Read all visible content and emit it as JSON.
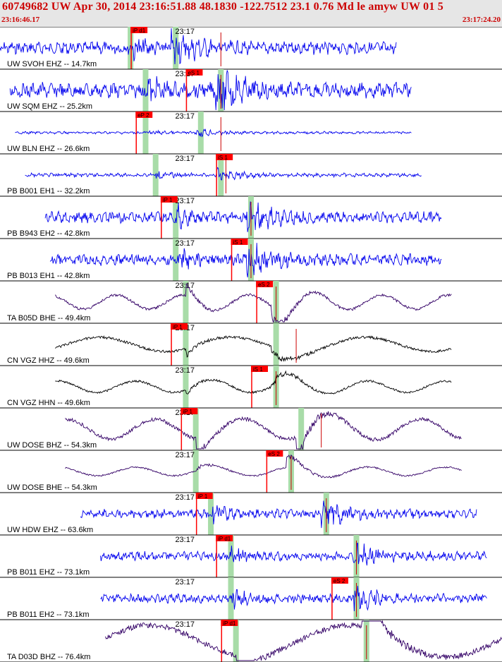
{
  "header": {
    "title": "60749682 UW Apr 30, 2014 23:16:51.88   48.1830 -122.7512 23.1 0.76 Md le amyw UW 01   5",
    "start_time": "23:16:46.17",
    "end_time": "23:17:24.20"
  },
  "colors": {
    "pick_box": "#ff0000",
    "window": "#a8dca8",
    "blue": "#0000ee",
    "purple": "#330066",
    "black": "#000000"
  },
  "chart_data": {
    "type": "line",
    "title": "60749682 UW Apr 30, 2014 23:16:51.88",
    "time_range": [
      "23:16:46.17",
      "23:17:24.20"
    ],
    "minute_marker": "23:17",
    "series": [
      {
        "label": "UW SVOH EHZ -- 14.7km",
        "start": 0.0,
        "end": 0.79,
        "amp": 10,
        "period": 3,
        "color": "blue",
        "p": 0.26,
        "s": 0.35,
        "g1": 0.26,
        "g2": 0.35,
        "spike": 0.44,
        "pick": "iP d1",
        "pick_at": 0.26,
        "minute": 0.37
      },
      {
        "label": "UW SQM EHZ -- 25.2km",
        "start": 0.02,
        "end": 0.82,
        "amp": 12,
        "period": 4,
        "color": "blue",
        "p": 0.29,
        "s": 0.44,
        "g1": 0.29,
        "g2": 0.44,
        "spike": 0.44,
        "pick": "eS 1",
        "pick_at": 0.37,
        "minute": 0.37
      },
      {
        "label": "UW BLN EHZ -- 26.6km",
        "start": 0.03,
        "end": 0.82,
        "amp": 2,
        "period": 3,
        "color": "blue",
        "p": 0.29,
        "s": 0.4,
        "g1": 0.29,
        "g2": 0.4,
        "spike": 0.44,
        "pick": "eP 2",
        "pick_at": 0.27,
        "minute": 0.37
      },
      {
        "label": "PB B001 EH1 -- 32.2km",
        "start": 0.05,
        "end": 0.84,
        "amp": 3,
        "period": 3,
        "color": "blue",
        "p": 0.31,
        "s": 0.44,
        "g1": 0.31,
        "g2": 0.44,
        "spike": 0.45,
        "pick": "iS 1",
        "pick_at": 0.43,
        "minute": 0.37
      },
      {
        "label": "PB B943 EH2 -- 42.8km",
        "start": 0.09,
        "end": 0.88,
        "amp": 9,
        "period": 3,
        "color": "blue",
        "p": 0.35,
        "s": 0.5,
        "g1": 0.35,
        "g2": 0.5,
        "spike": 0.5,
        "pick": "iP 1",
        "pick_at": 0.32,
        "minute": 0.37
      },
      {
        "label": "PB B013 EH1 -- 42.8km",
        "start": 0.1,
        "end": 0.88,
        "amp": 9,
        "period": 3,
        "color": "blue",
        "p": 0.35,
        "s": 0.5,
        "g1": 0.35,
        "g2": 0.5,
        "spike": 0.5,
        "pick": "iS 1",
        "pick_at": 0.46,
        "minute": 0.37
      },
      {
        "label": "TA B05D BHE -- 49.4km",
        "start": 0.11,
        "end": 0.9,
        "amp": 10,
        "period": 30,
        "color": "purple",
        "p": 0.37,
        "s": 0.55,
        "g1": 0.37,
        "g2": 0.55,
        "spike": 0.55,
        "pick": "eS 2",
        "pick_at": 0.51,
        "minute": 0.37
      },
      {
        "label": "CN VGZ HHZ -- 49.6km",
        "start": 0.11,
        "end": 0.9,
        "amp": 10,
        "period": 60,
        "color": "black",
        "p": 0.37,
        "s": 0.55,
        "g1": 0.37,
        "g2": 0.55,
        "spike": 0.59,
        "pick": "iP 1",
        "pick_at": 0.34,
        "minute": 0.37
      },
      {
        "label": "CN VGZ HHN -- 49.6km",
        "start": 0.11,
        "end": 0.9,
        "amp": 8,
        "period": 35,
        "color": "black",
        "p": 0.37,
        "s": 0.55,
        "g1": 0.37,
        "g2": 0.55,
        "spike": 0.55,
        "pick": "iS 1",
        "pick_at": 0.5,
        "minute": 0.37
      },
      {
        "label": "UW DOSE BHZ -- 54.3km",
        "start": 0.13,
        "end": 0.92,
        "amp": 14,
        "period": 40,
        "color": "purple",
        "p": 0.39,
        "s": 0.6,
        "g1": 0.39,
        "g2": 0.6,
        "spike": 0.64,
        "pick": "iP 1",
        "pick_at": 0.36,
        "minute": 0.37
      },
      {
        "label": "UW DOSE BHE -- 54.3km",
        "start": 0.13,
        "end": 0.92,
        "amp": 6,
        "period": 35,
        "color": "purple",
        "p": 0.39,
        "s": 0.58,
        "g1": 0.39,
        "g2": 0.58,
        "spike": 0.58,
        "pick": "eS 2",
        "pick_at": 0.53,
        "minute": 0.37
      },
      {
        "label": "UW HDW EHZ -- 63.6km",
        "start": 0.16,
        "end": 0.95,
        "amp": 7,
        "period": 3,
        "color": "blue",
        "p": 0.42,
        "s": 0.65,
        "g1": 0.42,
        "g2": 0.65,
        "spike": 0.65,
        "pick": "iP 1",
        "pick_at": 0.39,
        "minute": 0.37
      },
      {
        "label": "PB B011 EHZ -- 73.1km",
        "start": 0.2,
        "end": 0.97,
        "amp": 7,
        "period": 3,
        "color": "blue",
        "p": 0.46,
        "s": 0.71,
        "g1": 0.46,
        "g2": 0.71,
        "spike": 0.71,
        "pick": "iP d1",
        "pick_at": 0.43,
        "minute": 0.37
      },
      {
        "label": "PB B011 EH2 -- 73.1km",
        "start": 0.2,
        "end": 0.97,
        "amp": 7,
        "period": 3,
        "color": "blue",
        "p": 0.46,
        "s": 0.71,
        "g1": 0.46,
        "g2": 0.71,
        "spike": 0.71,
        "pick": "eS 2",
        "pick_at": 0.66,
        "minute": 0.37
      },
      {
        "label": "TA D03D BHZ -- 76.4km",
        "start": 0.21,
        "end": 1.0,
        "amp": 22,
        "period": 90,
        "color": "purple",
        "p": 0.47,
        "s": 0.73,
        "g1": 0.47,
        "g2": 0.73,
        "spike": 0.73,
        "pick": "iP d1",
        "pick_at": 0.44,
        "minute": 0.37
      }
    ]
  }
}
